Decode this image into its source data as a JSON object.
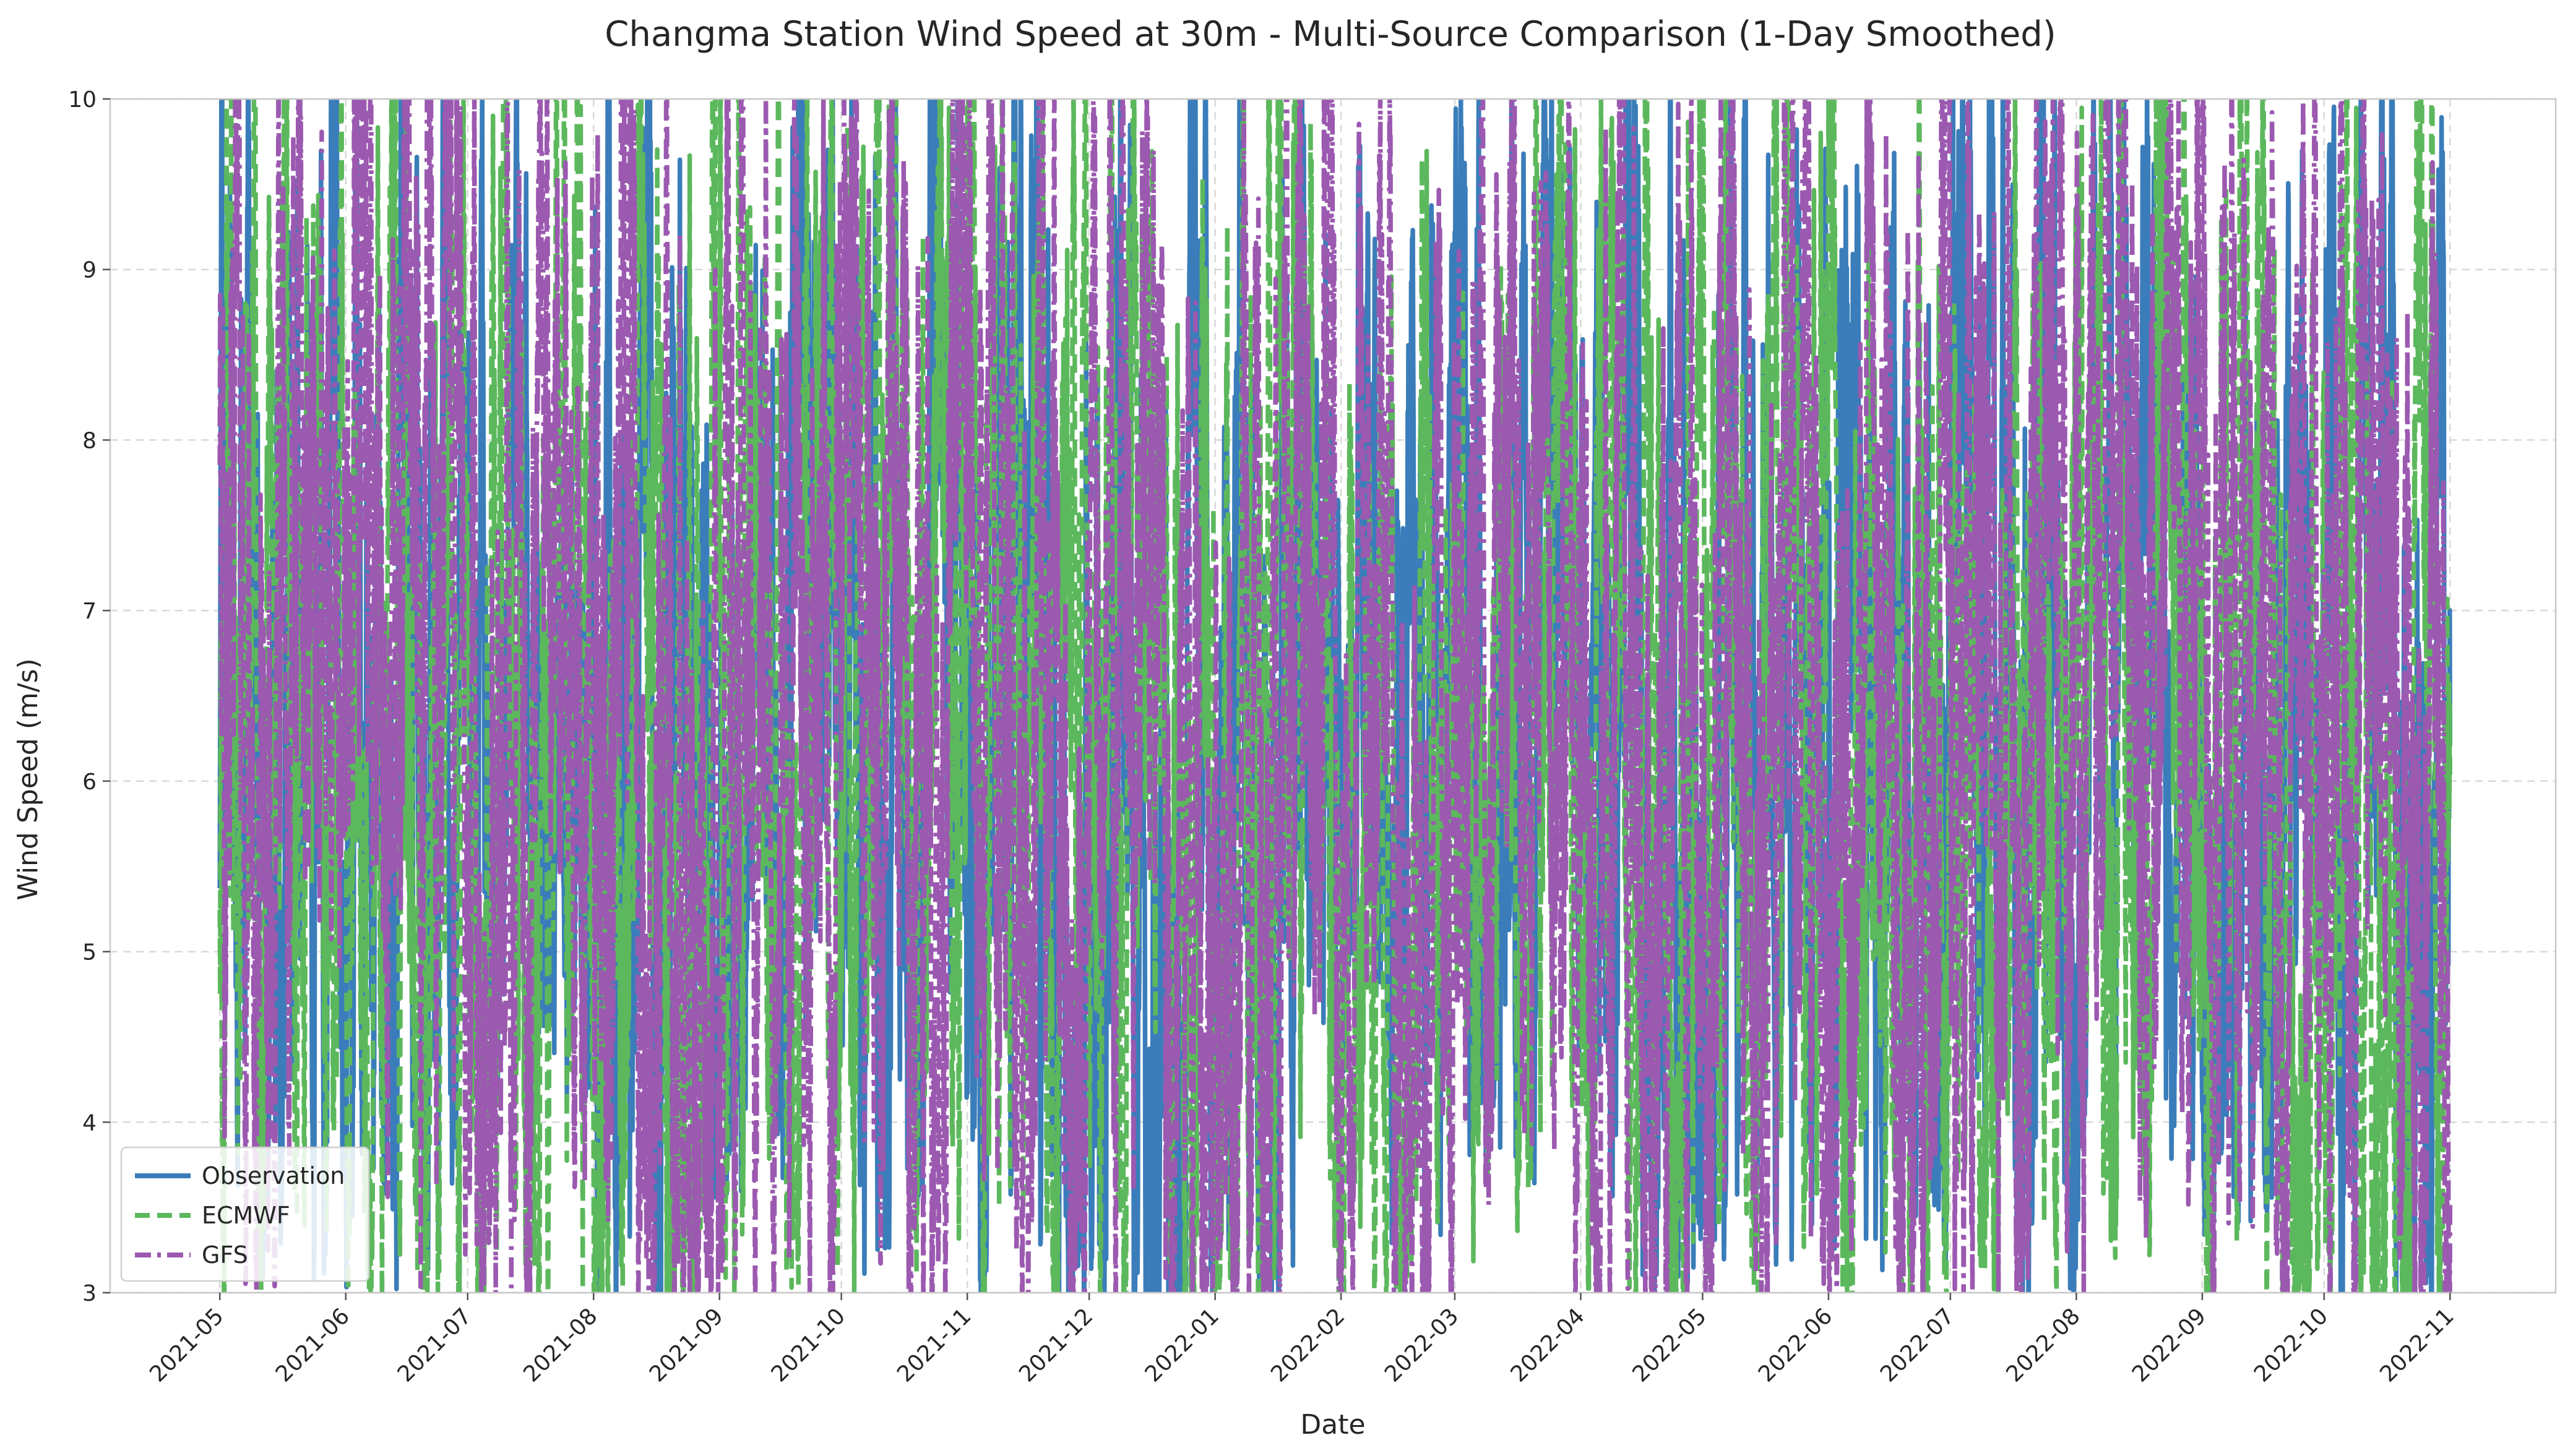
{
  "chart_data": {
    "type": "line",
    "title": "Changma Station Wind Speed at 30m - Multi-Source Comparison (1-Day Smoothed)",
    "xlabel": "Date",
    "ylabel": "Wind Speed (m/s)",
    "ylim": [
      3,
      10
    ],
    "xlim": [
      "2021-04-04",
      "2022-11-27"
    ],
    "x_ticks": [
      "2021-05",
      "2021-06",
      "2021-07",
      "2021-08",
      "2021-09",
      "2021-10",
      "2021-11",
      "2021-12",
      "2022-01",
      "2022-02",
      "2022-03",
      "2022-04",
      "2022-05",
      "2022-06",
      "2022-07",
      "2022-08",
      "2022-09",
      "2022-10",
      "2022-11"
    ],
    "y_ticks": [
      3,
      4,
      5,
      6,
      7,
      8,
      9,
      10
    ],
    "grid": true,
    "legend_position": "lower-left",
    "x_start": "2021-05-01",
    "x_end": "2022-11-01",
    "sampling": "hourly",
    "series": [
      {
        "name": "Observation",
        "color": "#3a7dba",
        "style": "solid",
        "monthly_mean": [
          6.4,
          6.3,
          5.9,
          6.0,
          6.2,
          6.5,
          6.3,
          6.1,
          6.0,
          5.6,
          6.6,
          6.1,
          6.1,
          6.0,
          6.4,
          6.8,
          6.0,
          6.3
        ],
        "monthly_range": [
          [
            3.5,
            10.0
          ],
          [
            3.5,
            10.0
          ],
          [
            4.6,
            10.0
          ],
          [
            3.2,
            10.0
          ],
          [
            4.0,
            10.0
          ],
          [
            3.6,
            10.0
          ],
          [
            3.2,
            10.0
          ],
          [
            3.0,
            10.0
          ],
          [
            3.0,
            10.0
          ],
          [
            3.0,
            8.5
          ],
          [
            4.0,
            10.0
          ],
          [
            3.4,
            10.0
          ],
          [
            3.6,
            10.0
          ],
          [
            3.5,
            10.0
          ],
          [
            3.0,
            10.0
          ],
          [
            4.2,
            10.0
          ],
          [
            3.8,
            9.0
          ],
          [
            3.4,
            9.3
          ]
        ]
      },
      {
        "name": "ECMWF",
        "color": "#5cb85c",
        "style": "dashed",
        "monthly_mean": [
          6.5,
          6.4,
          6.0,
          6.0,
          6.2,
          6.6,
          6.3,
          6.2,
          6.1,
          5.7,
          6.7,
          6.2,
          6.2,
          6.1,
          6.3,
          6.7,
          6.1,
          6.2
        ],
        "monthly_range": [
          [
            3.0,
            10.0
          ],
          [
            3.2,
            10.0
          ],
          [
            3.0,
            10.0
          ],
          [
            3.0,
            10.0
          ],
          [
            3.4,
            10.0
          ],
          [
            3.4,
            10.0
          ],
          [
            3.0,
            10.0
          ],
          [
            3.0,
            10.0
          ],
          [
            3.0,
            10.0
          ],
          [
            3.0,
            9.0
          ],
          [
            3.6,
            10.0
          ],
          [
            3.0,
            10.0
          ],
          [
            3.4,
            10.0
          ],
          [
            3.2,
            10.0
          ],
          [
            3.4,
            10.0
          ],
          [
            3.6,
            10.0
          ],
          [
            3.0,
            10.0
          ],
          [
            3.0,
            10.0
          ]
        ]
      },
      {
        "name": "GFS",
        "color": "#9b59b0",
        "style": "dashdot",
        "monthly_mean": [
          6.6,
          6.5,
          6.1,
          6.1,
          6.3,
          6.7,
          6.4,
          6.3,
          6.2,
          5.8,
          6.8,
          6.3,
          6.3,
          6.2,
          6.4,
          6.8,
          6.2,
          6.3
        ],
        "monthly_range": [
          [
            3.0,
            10.0
          ],
          [
            3.0,
            10.0
          ],
          [
            3.2,
            10.0
          ],
          [
            3.0,
            10.0
          ],
          [
            3.2,
            10.0
          ],
          [
            3.2,
            10.0
          ],
          [
            3.0,
            10.0
          ],
          [
            3.0,
            10.0
          ],
          [
            3.0,
            10.0
          ],
          [
            3.0,
            9.0
          ],
          [
            3.4,
            10.0
          ],
          [
            3.0,
            10.0
          ],
          [
            3.2,
            10.0
          ],
          [
            3.2,
            10.0
          ],
          [
            3.2,
            10.0
          ],
          [
            3.4,
            10.0
          ],
          [
            3.0,
            10.0
          ],
          [
            3.0,
            10.0
          ]
        ]
      }
    ]
  }
}
